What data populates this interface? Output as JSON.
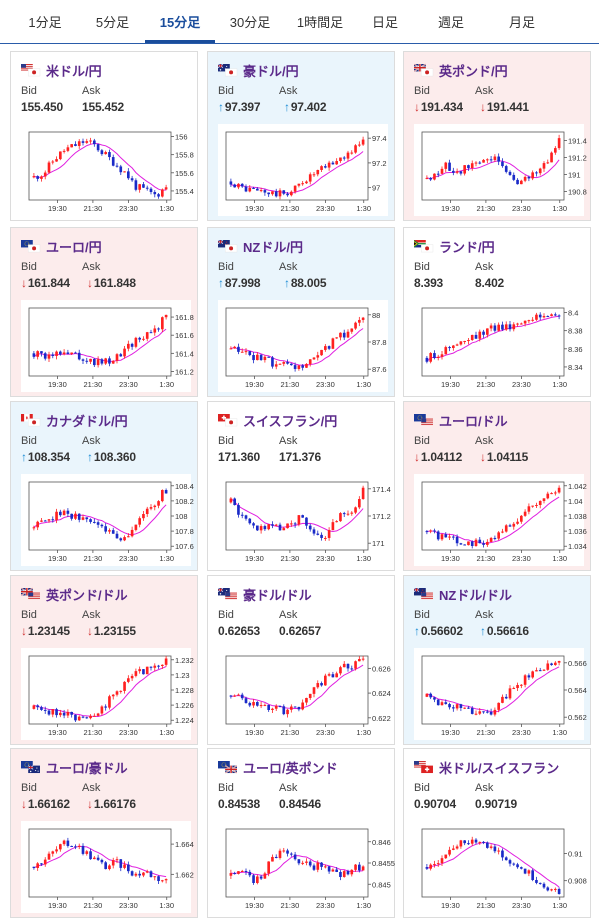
{
  "tabs": [
    {
      "label": "1分足",
      "active": false
    },
    {
      "label": "5分足",
      "active": false
    },
    {
      "label": "15分足",
      "active": true
    },
    {
      "label": "30分足",
      "active": false
    },
    {
      "label": "1時間足",
      "active": false
    },
    {
      "label": "日足",
      "active": false
    },
    {
      "label": "週足",
      "active": false
    },
    {
      "label": "月足",
      "active": false
    }
  ],
  "bid_label": "Bid",
  "ask_label": "Ask",
  "x_ticks": [
    "19:30",
    "21:30",
    "23:30",
    "1:30"
  ],
  "colors": {
    "up_candle": "#ff2020",
    "down_candle": "#1a2ac8",
    "ma": "#e020e0",
    "up_arrow": "#1a8ad4",
    "down_arrow": "#d03030"
  },
  "cards": [
    {
      "pair": "米ドル/円",
      "flag": "us-jp-flag",
      "dir": "neutral",
      "bid": "155.450",
      "ask": "155.452",
      "y_ticks": [
        "156",
        "155.8",
        "155.6",
        "155.4"
      ],
      "ylim": [
        155.3,
        156.05
      ],
      "trend": [
        155.55,
        155.6,
        155.75,
        155.85,
        155.9,
        155.95,
        155.9,
        155.8,
        155.7,
        155.6,
        155.45,
        155.4,
        155.35,
        155.45
      ]
    },
    {
      "pair": "豪ドル/円",
      "flag": "au-jp-flag",
      "dir": "up",
      "bid": "97.397",
      "ask": "97.402",
      "y_ticks": [
        "97.4",
        "97.2",
        "97"
      ],
      "ylim": [
        96.9,
        97.45
      ],
      "trend": [
        97.05,
        97.0,
        96.98,
        96.97,
        96.95,
        96.95,
        96.97,
        97.05,
        97.1,
        97.15,
        97.2,
        97.25,
        97.3,
        97.4
      ]
    },
    {
      "pair": "英ポンド/円",
      "flag": "gb-jp-flag",
      "dir": "down",
      "bid": "191.434",
      "ask": "191.441",
      "y_ticks": [
        "191.4",
        "191.2",
        "191",
        "190.8"
      ],
      "ylim": [
        190.7,
        191.5
      ],
      "trend": [
        190.95,
        191.05,
        191.1,
        191.0,
        191.1,
        191.15,
        191.2,
        191.15,
        191.0,
        190.9,
        190.95,
        191.05,
        191.2,
        191.45
      ]
    },
    {
      "pair": "ユーロ/円",
      "flag": "eu-jp-flag",
      "dir": "down",
      "bid": "161.844",
      "ask": "161.848",
      "y_ticks": [
        "161.8",
        "161.6",
        "161.4",
        "161.2"
      ],
      "ylim": [
        161.15,
        161.9
      ],
      "trend": [
        161.4,
        161.35,
        161.4,
        161.45,
        161.4,
        161.35,
        161.3,
        161.3,
        161.35,
        161.45,
        161.55,
        161.6,
        161.65,
        161.85
      ]
    },
    {
      "pair": "NZドル/円",
      "flag": "nz-jp-flag",
      "dir": "up",
      "bid": "87.998",
      "ask": "88.005",
      "y_ticks": [
        "88",
        "87.8",
        "87.6"
      ],
      "ylim": [
        87.55,
        88.05
      ],
      "trend": [
        87.75,
        87.72,
        87.7,
        87.68,
        87.65,
        87.63,
        87.6,
        87.62,
        87.65,
        87.72,
        87.8,
        87.85,
        87.9,
        88.0
      ]
    },
    {
      "pair": "ランド/円",
      "flag": "za-jp-flag",
      "dir": "neutral",
      "bid": "8.393",
      "ask": "8.402",
      "y_ticks": [
        "8.4",
        "8.38",
        "8.36",
        "8.34"
      ],
      "ylim": [
        8.33,
        8.405
      ],
      "trend": [
        8.35,
        8.355,
        8.36,
        8.365,
        8.37,
        8.375,
        8.38,
        8.385,
        8.385,
        8.39,
        8.395,
        8.395,
        8.398,
        8.4
      ]
    },
    {
      "pair": "カナダドル/円",
      "flag": "ca-jp-flag",
      "dir": "up",
      "bid": "108.354",
      "ask": "108.360",
      "y_ticks": [
        "108.4",
        "108.2",
        "108",
        "107.8",
        "107.6"
      ],
      "ylim": [
        107.55,
        108.45
      ],
      "trend": [
        107.85,
        107.95,
        108.0,
        108.05,
        108.0,
        107.95,
        107.9,
        107.85,
        107.75,
        107.7,
        107.9,
        108.05,
        108.2,
        108.35
      ]
    },
    {
      "pair": "スイスフラン/円",
      "flag": "ch-jp-flag",
      "dir": "neutral",
      "bid": "171.360",
      "ask": "171.376",
      "y_ticks": [
        "171.4",
        "171.2",
        "171"
      ],
      "ylim": [
        170.95,
        171.45
      ],
      "trend": [
        171.3,
        171.2,
        171.15,
        171.1,
        171.15,
        171.1,
        171.15,
        171.2,
        171.1,
        171.0,
        171.15,
        171.25,
        171.2,
        171.38
      ]
    },
    {
      "pair": "ユーロ/ドル",
      "flag": "eu-us-flag",
      "dir": "down",
      "bid": "1.04112",
      "ask": "1.04115",
      "y_ticks": [
        "1.042",
        "1.04",
        "1.038",
        "1.036",
        "1.034"
      ],
      "ylim": [
        1.0335,
        1.0425
      ],
      "trend": [
        1.036,
        1.0355,
        1.035,
        1.0348,
        1.0345,
        1.0345,
        1.0348,
        1.0355,
        1.0365,
        1.0375,
        1.039,
        1.04,
        1.041,
        1.0413
      ]
    },
    {
      "pair": "英ポンド/ドル",
      "flag": "gb-us-flag",
      "dir": "down",
      "bid": "1.23145",
      "ask": "1.23155",
      "y_ticks": [
        "1.232",
        "1.23",
        "1.228",
        "1.226",
        "1.224"
      ],
      "ylim": [
        1.2235,
        1.2325
      ],
      "trend": [
        1.2255,
        1.2255,
        1.225,
        1.2248,
        1.2245,
        1.2245,
        1.225,
        1.226,
        1.2275,
        1.229,
        1.23,
        1.2308,
        1.2315,
        1.2318
      ]
    },
    {
      "pair": "豪ドル/ドル",
      "flag": "au-us-flag",
      "dir": "neutral",
      "bid": "0.62653",
      "ask": "0.62657",
      "y_ticks": [
        "0.626",
        "0.624",
        "0.622"
      ],
      "ylim": [
        0.6215,
        0.627
      ],
      "trend": [
        0.6238,
        0.6235,
        0.6232,
        0.623,
        0.6228,
        0.6226,
        0.6226,
        0.6232,
        0.6242,
        0.625,
        0.6255,
        0.626,
        0.6263,
        0.6266
      ]
    },
    {
      "pair": "NZドル/ドル",
      "flag": "nz-us-flag",
      "dir": "up",
      "bid": "0.56602",
      "ask": "0.56616",
      "y_ticks": [
        "0.566",
        "0.564",
        "0.562"
      ],
      "ylim": [
        0.5615,
        0.5665
      ],
      "trend": [
        0.5635,
        0.5632,
        0.563,
        0.5628,
        0.5625,
        0.5622,
        0.5622,
        0.5628,
        0.5638,
        0.5645,
        0.565,
        0.5655,
        0.5658,
        0.566
      ]
    },
    {
      "pair": "ユーロ/豪ドル",
      "flag": "eu-au-flag",
      "dir": "down",
      "bid": "1.66162",
      "ask": "1.66176",
      "y_ticks": [
        "1.664",
        "1.662"
      ],
      "ylim": [
        1.6605,
        1.665
      ],
      "trend": [
        1.6625,
        1.663,
        1.6635,
        1.664,
        1.664,
        1.6635,
        1.663,
        1.6625,
        1.6628,
        1.6625,
        1.662,
        1.6622,
        1.6618,
        1.6616
      ]
    },
    {
      "pair": "ユーロ/英ポンド",
      "flag": "eu-gb-flag",
      "dir": "neutral",
      "bid": "0.84538",
      "ask": "0.84546",
      "y_ticks": [
        "0.846",
        "0.8455",
        "0.845"
      ],
      "ylim": [
        0.8447,
        0.8463
      ],
      "trend": [
        0.8452,
        0.8453,
        0.8451,
        0.8452,
        0.8456,
        0.8458,
        0.8457,
        0.8455,
        0.8454,
        0.8455,
        0.8453,
        0.8452,
        0.8454,
        0.8454
      ]
    },
    {
      "pair": "米ドル/スイスフラン",
      "flag": "us-ch-flag",
      "dir": "neutral",
      "bid": "0.90704",
      "ask": "0.90719",
      "y_ticks": [
        "0.91",
        "0.908"
      ],
      "ylim": [
        0.9068,
        0.9118
      ],
      "trend": [
        0.909,
        0.9095,
        0.9102,
        0.9106,
        0.911,
        0.911,
        0.9105,
        0.91,
        0.9095,
        0.909,
        0.9085,
        0.908,
        0.9075,
        0.907
      ]
    }
  ]
}
